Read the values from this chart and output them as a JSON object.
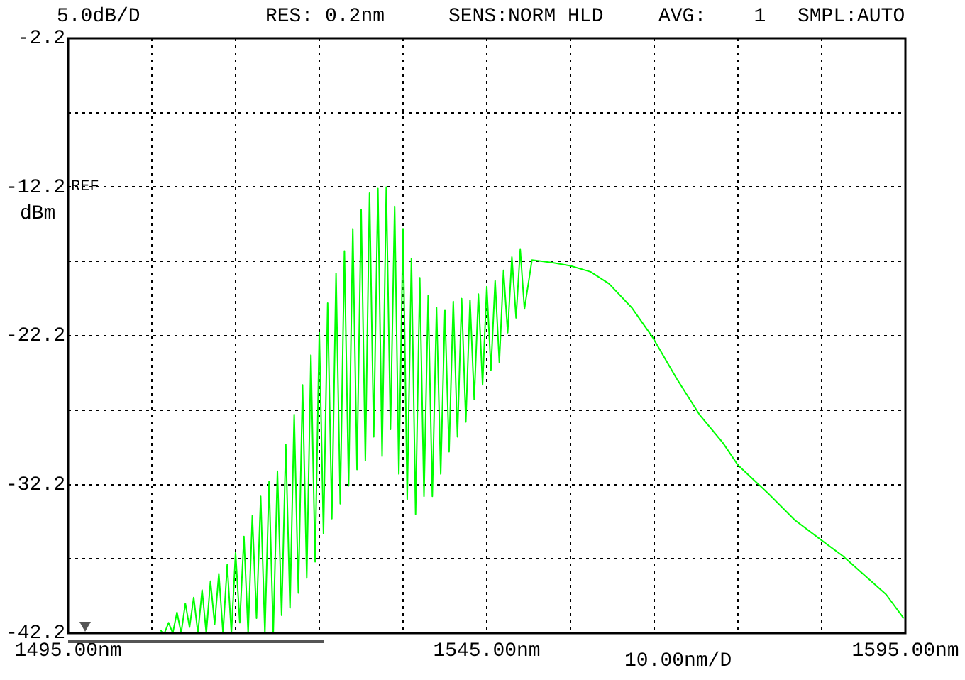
{
  "chart_data": {
    "type": "line",
    "ylabel": "dBm",
    "xlabel": "10.00nm/D",
    "annotations": [
      "5.0dB/D",
      "RES: 0.2nm",
      "SENS:NORM HLD",
      "AVG:    1",
      "SMPL:AUTO",
      "REF"
    ],
    "xlim": [
      1495,
      1595
    ],
    "xticks": [
      {
        "value": 1495,
        "label": "1495.00nm"
      },
      {
        "value": 1505,
        "label": null
      },
      {
        "value": 1515,
        "label": null
      },
      {
        "value": 1525,
        "label": null
      },
      {
        "value": 1535,
        "label": null
      },
      {
        "value": 1545,
        "label": "1545.00nm"
      },
      {
        "value": 1555,
        "label": null
      },
      {
        "value": 1565,
        "label": null
      },
      {
        "value": 1575,
        "label": null
      },
      {
        "value": 1585,
        "label": null
      },
      {
        "value": 1595,
        "label": "1595.00nm"
      }
    ],
    "ylim": [
      -42.2,
      -2.2
    ],
    "yticks": [
      -42.2,
      {
        "value": -37.2,
        "label": null
      },
      -32.2,
      {
        "value": -27.2,
        "label": null
      },
      -22.2,
      {
        "value": -17.2,
        "label": null
      },
      -12.2,
      {
        "value": -7.2,
        "label": null
      },
      -2.2
    ],
    "grid": true,
    "marker": "none",
    "series": [
      {
        "color": "#00ff00",
        "x": [
          1506,
          1506.5,
          1507,
          1507.5,
          1508,
          1508.5,
          1509,
          1509.5,
          1510,
          1510.5,
          1511,
          1511.5,
          1512,
          1512.5,
          1513,
          1513.5,
          1514,
          1514.5,
          1515,
          1515.5,
          1516,
          1516.5,
          1517,
          1517.5,
          1518,
          1518.5,
          1519,
          1519.5,
          1520,
          1520.5,
          1521,
          1521.5,
          1522,
          1522.5,
          1523,
          1523.5,
          1524,
          1524.5,
          1525,
          1525.5,
          1526,
          1526.5,
          1527,
          1527.5,
          1528,
          1528.5,
          1529,
          1529.5,
          1530,
          1530.5,
          1531,
          1531.5,
          1532,
          1532.5,
          1533,
          1533.5,
          1534,
          1534.5,
          1535,
          1535.5,
          1536,
          1536.5,
          1537,
          1537.5,
          1538,
          1538.5,
          1539,
          1539.5,
          1540,
          1540.5,
          1541,
          1541.5,
          1542,
          1542.5,
          1543,
          1543.5,
          1544,
          1544.5,
          1545,
          1545.5,
          1546,
          1546.5,
          1547,
          1547.5,
          1548,
          1548.5,
          1549,
          1549.5,
          1550.4,
          1553.0,
          1555.0,
          1557.4,
          1559.6,
          1562.3,
          1564.8,
          1567.7,
          1570.4,
          1573.2,
          1575.0,
          1578.6,
          1581.8,
          1585.1,
          1587.5,
          1589.5,
          1592.7,
          1594.8
        ],
        "values": [
          -42.0,
          -42.2,
          -41.5,
          -42.2,
          -40.8,
          -42.2,
          -40.2,
          -41.8,
          -39.8,
          -42.2,
          -39.3,
          -42.2,
          -38.7,
          -41.6,
          -38.2,
          -42.2,
          -37.6,
          -42.2,
          -36.8,
          -41.5,
          -35.7,
          -42.2,
          -34.3,
          -41.2,
          -33.0,
          -42.2,
          -32.0,
          -42.2,
          -31.3,
          -41.0,
          -29.5,
          -40.5,
          -27.5,
          -39.5,
          -25.5,
          -38.5,
          -23.5,
          -37.4,
          -22.0,
          -35.5,
          -20.0,
          -34.5,
          -18.0,
          -33.5,
          -16.5,
          -32.3,
          -15.0,
          -31.2,
          -13.7,
          -30.6,
          -12.6,
          -29.0,
          -12.3,
          -30.3,
          -12.2,
          -28.5,
          -13.5,
          -31.5,
          -15.0,
          -33.2,
          -17.0,
          -34.2,
          -18.3,
          -33.0,
          -19.5,
          -33.0,
          -20.3,
          -31.5,
          -20.5,
          -30.0,
          -19.9,
          -29.0,
          -19.7,
          -28.0,
          -19.8,
          -26.5,
          -19.4,
          -25.5,
          -18.9,
          -24.5,
          -18.5,
          -24.0,
          -17.8,
          -22.0,
          -16.9,
          -21.0,
          -16.4,
          -20.4,
          -17.1,
          -17.3,
          -17.5,
          -17.9,
          -18.7,
          -20.3,
          -22.3,
          -25.1,
          -27.5,
          -29.4,
          -30.9,
          -32.8,
          -34.6,
          -36.0,
          -37.0,
          -38.0,
          -39.6,
          -41.2
        ]
      }
    ]
  }
}
